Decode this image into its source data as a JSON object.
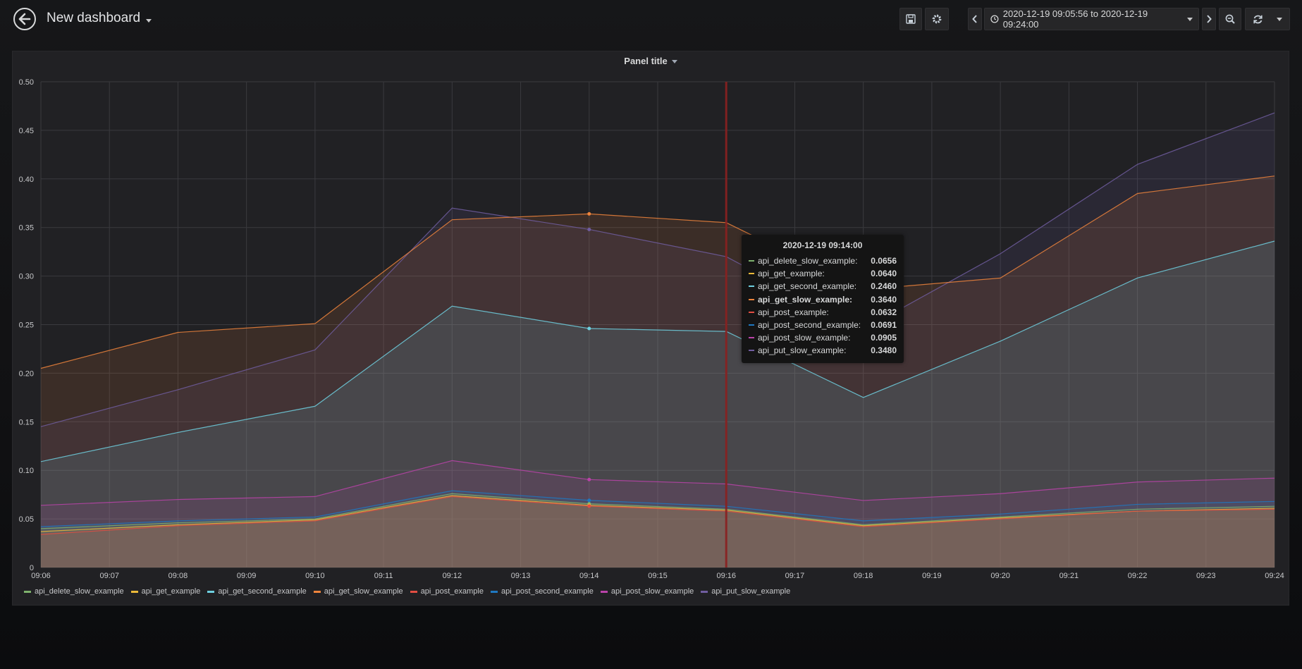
{
  "navbar": {
    "title": "New dashboard",
    "time_range": "2020-12-19 09:05:56 to 2020-12-19 09:24:00"
  },
  "panel": {
    "title": "Panel title"
  },
  "tooltip": {
    "time": "2020-12-19 09:14:00",
    "rows": [
      {
        "name": "api_delete_slow_example:",
        "value": "0.0656",
        "highlight": false
      },
      {
        "name": "api_get_example:",
        "value": "0.0640",
        "highlight": false
      },
      {
        "name": "api_get_second_example:",
        "value": "0.2460",
        "highlight": false
      },
      {
        "name": "api_get_slow_example:",
        "value": "0.3640",
        "highlight": true
      },
      {
        "name": "api_post_example:",
        "value": "0.0632",
        "highlight": false
      },
      {
        "name": "api_post_second_example:",
        "value": "0.0691",
        "highlight": false
      },
      {
        "name": "api_post_slow_example:",
        "value": "0.0905",
        "highlight": false
      },
      {
        "name": "api_put_slow_example:",
        "value": "0.3480",
        "highlight": false
      }
    ]
  },
  "chart_data": {
    "type": "area",
    "x": [
      "09:06",
      "09:07",
      "09:08",
      "09:09",
      "09:10",
      "09:11",
      "09:12",
      "09:13",
      "09:14",
      "09:15",
      "09:16",
      "09:17",
      "09:18",
      "09:19",
      "09:20",
      "09:21",
      "09:22",
      "09:23",
      "09:24"
    ],
    "ylim": [
      0,
      0.5
    ],
    "yticks": [
      "0",
      "0.05",
      "0.10",
      "0.15",
      "0.20",
      "0.25",
      "0.30",
      "0.35",
      "0.40",
      "0.45",
      "0.50"
    ],
    "grid": true,
    "legend_position": "bottom",
    "crosshair_x": "09:16",
    "series": [
      {
        "name": "api_delete_slow_example",
        "color": "#7eb26d",
        "x": [
          "09:06",
          "09:08",
          "09:10",
          "09:12",
          "09:14",
          "09:16",
          "09:18",
          "09:20",
          "09:22",
          "09:24"
        ],
        "values": [
          0.04,
          0.046,
          0.05,
          0.076,
          0.0656,
          0.06,
          0.044,
          0.052,
          0.06,
          0.063
        ]
      },
      {
        "name": "api_get_example",
        "color": "#eab839",
        "x": [
          "09:06",
          "09:08",
          "09:10",
          "09:12",
          "09:14",
          "09:16",
          "09:18",
          "09:20",
          "09:22",
          "09:24"
        ],
        "values": [
          0.037,
          0.044,
          0.049,
          0.074,
          0.064,
          0.059,
          0.043,
          0.051,
          0.058,
          0.061
        ]
      },
      {
        "name": "api_get_second_example",
        "color": "#6ed0e0",
        "x": [
          "09:06",
          "09:08",
          "09:10",
          "09:12",
          "09:14",
          "09:16",
          "09:18",
          "09:20",
          "09:22",
          "09:24"
        ],
        "values": [
          0.109,
          0.139,
          0.166,
          0.269,
          0.246,
          0.243,
          0.175,
          0.233,
          0.298,
          0.336
        ]
      },
      {
        "name": "api_get_slow_example",
        "color": "#ef843c",
        "x": [
          "09:06",
          "09:08",
          "09:10",
          "09:12",
          "09:14",
          "09:16",
          "09:18",
          "09:20",
          "09:22",
          "09:24"
        ],
        "values": [
          0.205,
          0.242,
          0.251,
          0.358,
          0.364,
          0.355,
          0.286,
          0.298,
          0.385,
          0.403
        ]
      },
      {
        "name": "api_post_example",
        "color": "#e24d42",
        "x": [
          "09:06",
          "09:08",
          "09:10",
          "09:12",
          "09:14",
          "09:16",
          "09:18",
          "09:20",
          "09:22",
          "09:24"
        ],
        "values": [
          0.034,
          0.043,
          0.048,
          0.073,
          0.0632,
          0.058,
          0.042,
          0.05,
          0.058,
          0.06
        ]
      },
      {
        "name": "api_post_second_example",
        "color": "#1f78c1",
        "x": [
          "09:06",
          "09:08",
          "09:10",
          "09:12",
          "09:14",
          "09:16",
          "09:18",
          "09:20",
          "09:22",
          "09:24"
        ],
        "values": [
          0.042,
          0.048,
          0.052,
          0.079,
          0.0691,
          0.063,
          0.048,
          0.055,
          0.065,
          0.068
        ]
      },
      {
        "name": "api_post_slow_example",
        "color": "#ba43a9",
        "x": [
          "09:06",
          "09:08",
          "09:10",
          "09:12",
          "09:14",
          "09:16",
          "09:18",
          "09:20",
          "09:22",
          "09:24"
        ],
        "values": [
          0.064,
          0.07,
          0.073,
          0.11,
          0.0905,
          0.086,
          0.069,
          0.076,
          0.088,
          0.092
        ]
      },
      {
        "name": "api_put_slow_example",
        "color": "#705da0",
        "x": [
          "09:06",
          "09:08",
          "09:10",
          "09:12",
          "09:14",
          "09:16",
          "09:18",
          "09:20",
          "09:22",
          "09:24"
        ],
        "values": [
          0.145,
          0.183,
          0.224,
          0.37,
          0.348,
          0.32,
          0.245,
          0.323,
          0.415,
          0.468
        ]
      }
    ]
  }
}
